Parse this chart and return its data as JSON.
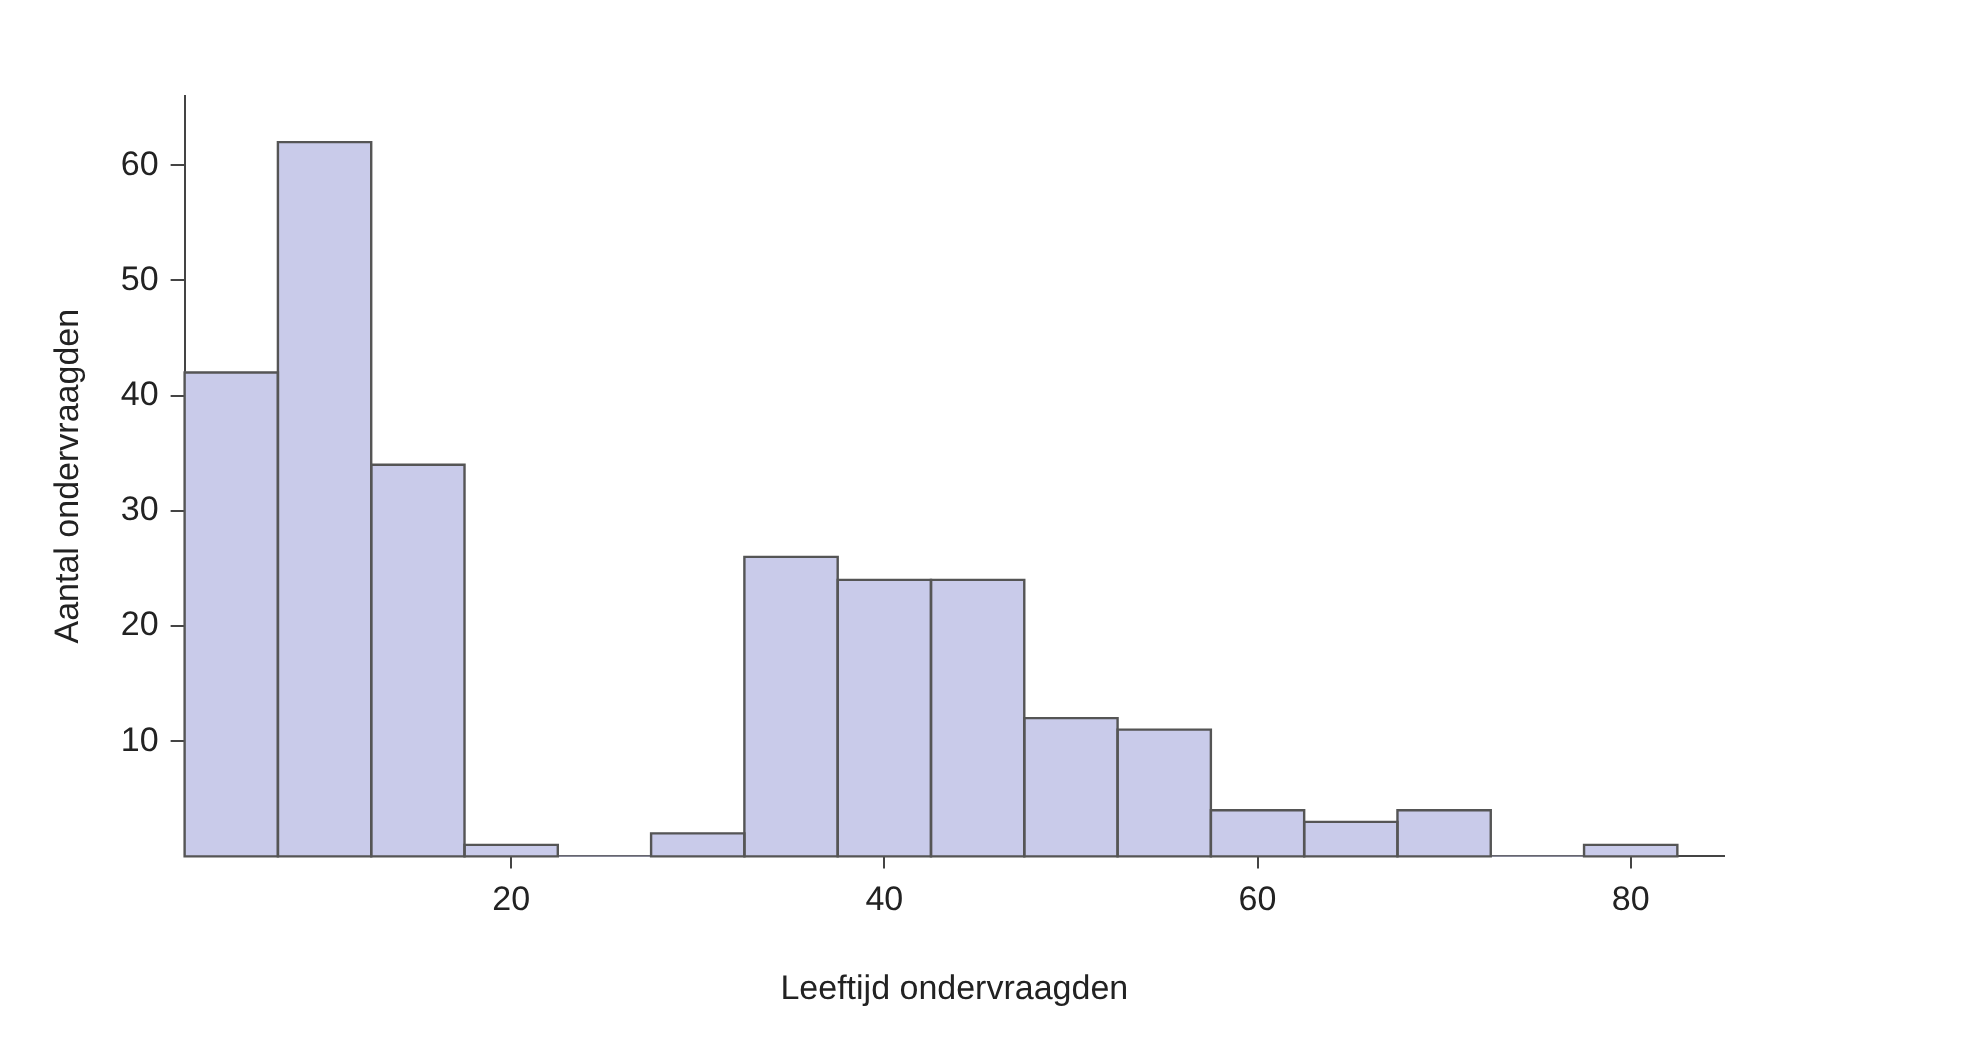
{
  "chart_data": {
    "type": "histogram",
    "xlabel": "Leeftijd ondervraagden",
    "ylabel": "Aantal ondervraagden",
    "bins": [
      2.5,
      7.5,
      12.5,
      17.5,
      22.5,
      27.5,
      32.5,
      37.5,
      42.5,
      47.5,
      52.5,
      57.5,
      62.5,
      67.5,
      72.5,
      77.5,
      82.5
    ],
    "values": [
      42,
      62,
      34,
      1,
      0,
      2,
      26,
      24,
      24,
      12,
      11,
      4,
      3,
      4,
      0,
      1
    ],
    "color": "#c9cbea",
    "xlim": [
      2.5,
      85
    ],
    "xticks": [
      20,
      40,
      60,
      80
    ],
    "ylim": [
      0,
      66
    ],
    "yticks": [
      10,
      20,
      30,
      40,
      50,
      60
    ],
    "grid": false,
    "legend": false
  }
}
